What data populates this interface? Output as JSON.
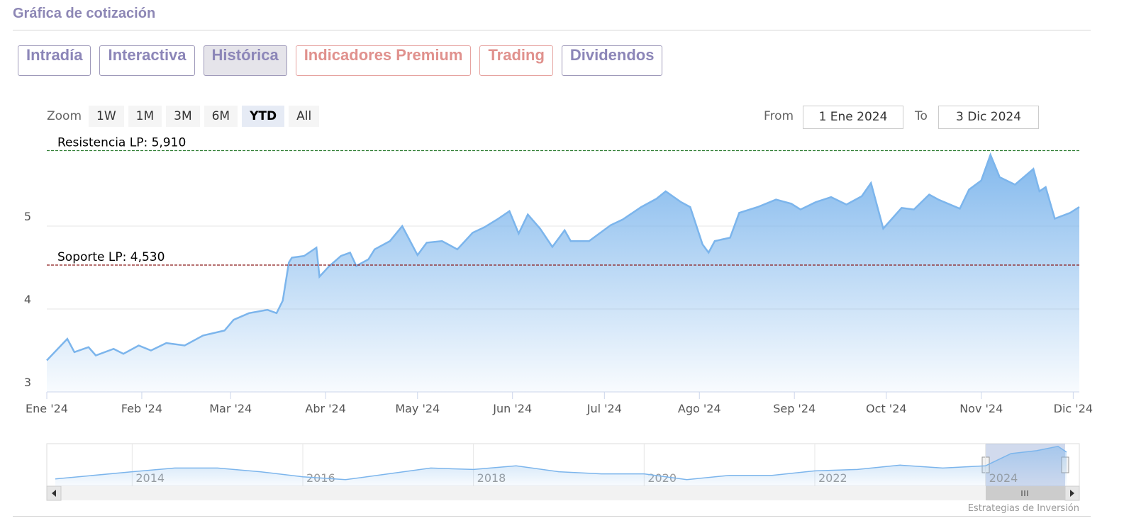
{
  "page": {
    "header": "Gráfica de cotización",
    "tabs": [
      "Intradía",
      "Interactiva",
      "Histórica",
      "Indicadores Premium",
      "Trading",
      "Dividendos"
    ],
    "zoom_label": "Zoom",
    "zoom_buttons": [
      "1W",
      "1M",
      "3M",
      "6M",
      "YTD",
      "All"
    ],
    "from_label": "From",
    "from_value": "1 Ene 2024",
    "to_label": "To",
    "to_value": "3 Dic 2024",
    "credits": "Estrategias de Inversión"
  },
  "chart_data": {
    "type": "area",
    "x": [
      0,
      6.7,
      9,
      13.6,
      16,
      21.8,
      25,
      30,
      34,
      39,
      45,
      51,
      58,
      61,
      66,
      72,
      75,
      77,
      79,
      80,
      84,
      88,
      89,
      92,
      96,
      99,
      101,
      105,
      107,
      112,
      116,
      121,
      124,
      129,
      134,
      139,
      143,
      147,
      151,
      154,
      157,
      161,
      165,
      169,
      171,
      177,
      184,
      188,
      194,
      199,
      202,
      207,
      210,
      214,
      216,
      218,
      223,
      226,
      232,
      238,
      243,
      246,
      251,
      256,
      261,
      266,
      269,
      273,
      279,
      283,
      288,
      291,
      298,
      301,
      305,
      308,
      311,
      316,
      322,
      324,
      326,
      329,
      334,
      337
    ],
    "series": [
      {
        "color": "#7cb5ec",
        "values": [
          3.38,
          3.64,
          3.48,
          3.54,
          3.44,
          3.52,
          3.46,
          3.56,
          3.5,
          3.59,
          3.56,
          3.68,
          3.74,
          3.87,
          3.95,
          3.99,
          3.95,
          4.1,
          4.56,
          4.62,
          4.64,
          4.74,
          4.39,
          4.51,
          4.64,
          4.68,
          4.52,
          4.6,
          4.72,
          4.82,
          5.0,
          4.65,
          4.8,
          4.82,
          4.72,
          4.92,
          4.99,
          5.08,
          5.18,
          4.91,
          5.14,
          4.97,
          4.75,
          4.95,
          4.82,
          4.82,
          5.01,
          5.08,
          5.23,
          5.33,
          5.42,
          5.29,
          5.23,
          4.78,
          4.68,
          4.82,
          4.86,
          5.16,
          5.23,
          5.32,
          5.27,
          5.2,
          5.29,
          5.35,
          5.26,
          5.36,
          5.52,
          4.97,
          5.22,
          5.2,
          5.38,
          5.32,
          5.21,
          5.44,
          5.55,
          5.86,
          5.59,
          5.5,
          5.69,
          5.42,
          5.47,
          5.09,
          5.16,
          5.23
        ]
      }
    ],
    "xlim": [
      0,
      337
    ],
    "xticks": [
      {
        "value": 0,
        "label": "Ene '24"
      },
      {
        "value": 31,
        "label": "Feb '24"
      },
      {
        "value": 60,
        "label": "Mar '24"
      },
      {
        "value": 91,
        "label": "Abr '24"
      },
      {
        "value": 121,
        "label": "May '24"
      },
      {
        "value": 152,
        "label": "Jun '24"
      },
      {
        "value": 182,
        "label": "Jul '24"
      },
      {
        "value": 213,
        "label": "Ago '24"
      },
      {
        "value": 244,
        "label": "Sep '24"
      },
      {
        "value": 274,
        "label": "Oct '24"
      },
      {
        "value": 305,
        "label": "Nov '24"
      },
      {
        "value": 335,
        "label": "Dic '24"
      }
    ],
    "ylim": [
      3,
      6
    ],
    "yticks": [
      3,
      4,
      5
    ],
    "grid": true,
    "plot_lines": [
      {
        "label": "Resistencia LP: 5,910",
        "value": 5.91,
        "color": "#2e7d32"
      },
      {
        "label": "Soporte LP: 4,530",
        "value": 4.53,
        "color": "#8b1a1a"
      }
    ],
    "navigator": {
      "x": [
        2013.1,
        2014,
        2014.5,
        2015,
        2015.5,
        2016,
        2016.5,
        2017,
        2017.5,
        2018,
        2018.5,
        2019,
        2019.5,
        2020,
        2020.5,
        2021,
        2021.5,
        2022,
        2022.5,
        2023,
        2023.5,
        2024,
        2024.3,
        2024.6,
        2024.85,
        2024.95
      ],
      "values": [
        1.72,
        2.64,
        3.1,
        3.1,
        2.64,
        2.0,
        1.63,
        2.37,
        3.1,
        2.92,
        3.38,
        2.64,
        2.37,
        2.37,
        1.63,
        2.18,
        2.18,
        2.74,
        2.92,
        3.47,
        3.1,
        3.38,
        4.94,
        5.31,
        5.86,
        5.13
      ],
      "xlim": [
        2013,
        2025.1
      ],
      "ylim": [
        0.8,
        6.2
      ],
      "xticks": [
        2014,
        2016,
        2018,
        2020,
        2022,
        2024
      ]
    }
  }
}
